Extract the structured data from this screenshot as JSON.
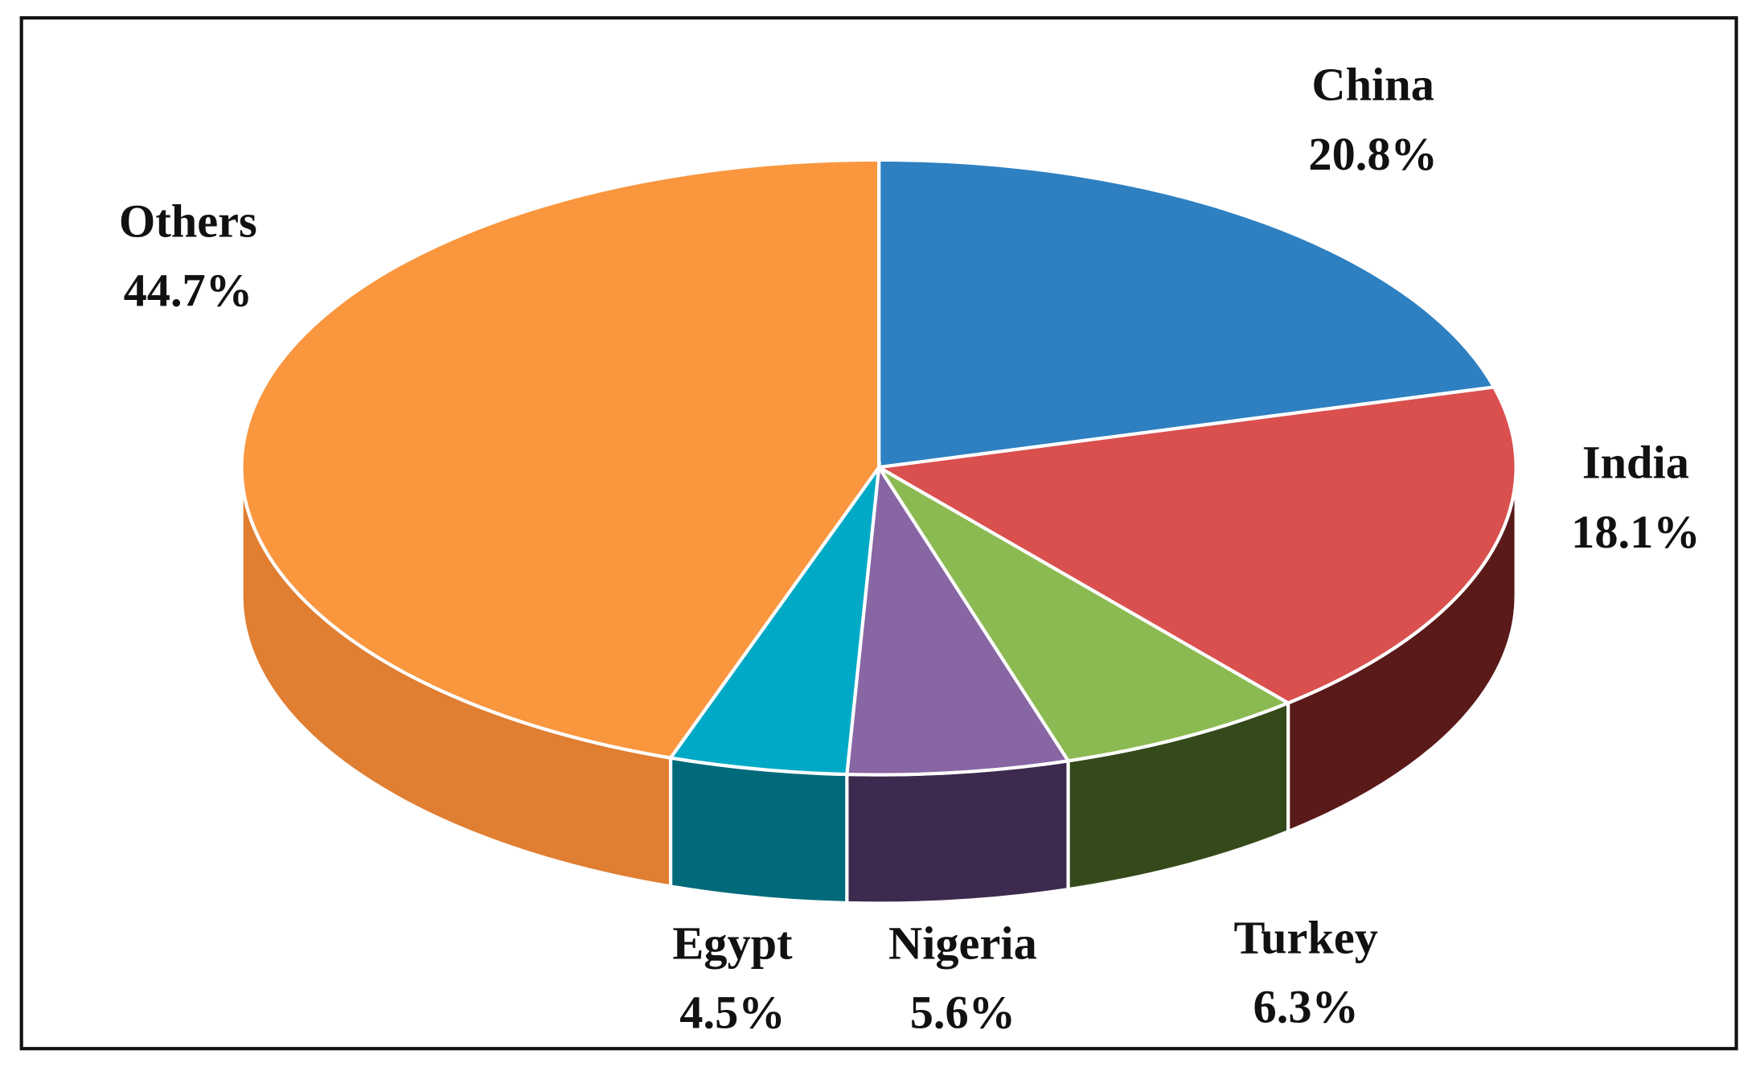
{
  "chart_data": {
    "type": "pie",
    "categories": [
      "China",
      "India",
      "Turkey",
      "Nigeria",
      "Egypt",
      "Others"
    ],
    "values": [
      20.8,
      18.1,
      6.3,
      5.6,
      4.5,
      44.7
    ],
    "value_labels": [
      "20.8%",
      "18.1%",
      "6.3%",
      "5.6%",
      "4.5%",
      "44.7%"
    ],
    "colors": [
      "#2e80c1",
      "#d9504e",
      "#8cba52",
      "#8865a3",
      "#00a9c5",
      "#f9963e"
    ],
    "side_colors": [
      "#1d507a",
      "#5a1a1a",
      "#344a1a",
      "#3e2a4e",
      "#006a7a",
      "#e07e32"
    ]
  }
}
